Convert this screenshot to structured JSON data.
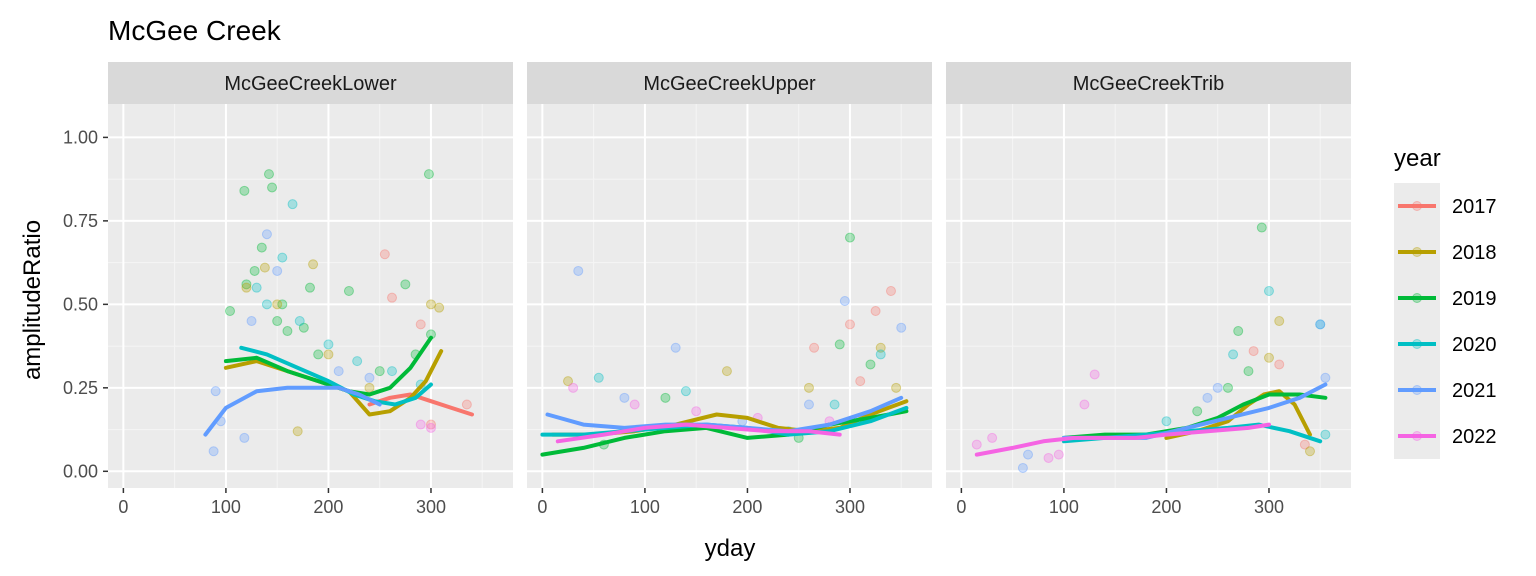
{
  "chart_data": {
    "type": "scatter",
    "title": "McGee Creek",
    "xlabel": "yday",
    "ylabel": "amplitudeRatio",
    "xlim": [
      -15,
      380
    ],
    "ylim": [
      -0.05,
      1.1
    ],
    "xticks": [
      0,
      100,
      200,
      300
    ],
    "xtick_labels": [
      "0",
      "100",
      "200",
      "300"
    ],
    "yticks": [
      0,
      0.25,
      0.5,
      0.75,
      1.0
    ],
    "ytick_labels": [
      "0.00",
      "0.25",
      "0.50",
      "0.75",
      "1.00"
    ],
    "grid": true,
    "legend": {
      "title": "year",
      "placement": "right",
      "entries": [
        "2017",
        "2018",
        "2019",
        "2020",
        "2021",
        "2022"
      ]
    },
    "colors": {
      "2017": "#F8766D",
      "2018": "#B79F00",
      "2019": "#00BA38",
      "2020": "#00BFC4",
      "2021": "#619CFF",
      "2022": "#F564E3"
    },
    "panels": [
      {
        "label": "McGeeCreekLower",
        "smooths": [
          {
            "name": "2017",
            "x": [
              240,
              260,
              280,
              300,
              320,
              340
            ],
            "y": [
              0.2,
              0.22,
              0.23,
              0.21,
              0.19,
              0.17
            ]
          },
          {
            "name": "2018",
            "x": [
              100,
              130,
              160,
              190,
              220,
              240,
              260,
              280,
              295,
              310
            ],
            "y": [
              0.31,
              0.33,
              0.3,
              0.27,
              0.24,
              0.17,
              0.18,
              0.22,
              0.27,
              0.36
            ]
          },
          {
            "name": "2019",
            "x": [
              100,
              130,
              160,
              190,
              220,
              240,
              260,
              280,
              300
            ],
            "y": [
              0.33,
              0.34,
              0.3,
              0.27,
              0.24,
              0.23,
              0.25,
              0.31,
              0.4
            ]
          },
          {
            "name": "2020",
            "x": [
              115,
              140,
              170,
              200,
              225,
              245,
              265,
              285,
              300
            ],
            "y": [
              0.37,
              0.35,
              0.31,
              0.27,
              0.23,
              0.21,
              0.2,
              0.22,
              0.26
            ]
          },
          {
            "name": "2021",
            "x": [
              80,
              100,
              130,
              160,
              190,
              210,
              230,
              250
            ],
            "y": [
              0.11,
              0.19,
              0.24,
              0.25,
              0.25,
              0.25,
              0.23,
              0.2
            ]
          }
        ],
        "points": [
          {
            "name": "2019",
            "x": [
              118,
              142,
              145,
              155,
              182,
              298,
              120,
              135,
              160,
              176,
              220,
              275,
              104,
              128,
              150,
              190,
              250,
              285,
              300
            ],
            "y": [
              0.84,
              0.89,
              0.85,
              0.5,
              0.55,
              0.89,
              0.56,
              0.67,
              0.42,
              0.43,
              0.54,
              0.56,
              0.48,
              0.6,
              0.45,
              0.35,
              0.3,
              0.35,
              0.41
            ]
          },
          {
            "name": "2020",
            "x": [
              165,
              155,
              130,
              140,
              172,
              200,
              228,
              262,
              290
            ],
            "y": [
              0.8,
              0.64,
              0.55,
              0.5,
              0.45,
              0.38,
              0.33,
              0.3,
              0.26
            ]
          },
          {
            "name": "2021",
            "x": [
              140,
              150,
              125,
              90,
              95,
              118,
              210,
              240,
              88
            ],
            "y": [
              0.71,
              0.6,
              0.45,
              0.24,
              0.15,
              0.1,
              0.3,
              0.28,
              0.06
            ]
          },
          {
            "name": "2018",
            "x": [
              138,
              185,
              120,
              150,
              200,
              240,
              300,
              308,
              170
            ],
            "y": [
              0.61,
              0.62,
              0.55,
              0.5,
              0.35,
              0.25,
              0.5,
              0.49,
              0.12
            ]
          },
          {
            "name": "2017",
            "x": [
              255,
              262,
              290,
              300,
              335
            ],
            "y": [
              0.65,
              0.52,
              0.44,
              0.14,
              0.2
            ]
          },
          {
            "name": "2022",
            "x": [
              290,
              300
            ],
            "y": [
              0.14,
              0.13
            ]
          }
        ]
      },
      {
        "label": "McGeeCreekUpper",
        "smooths": [
          {
            "name": "2018",
            "x": [
              10,
              50,
              90,
              130,
              170,
              200,
              230,
              260,
              290,
              320,
              355
            ],
            "y": [
              0.11,
              0.11,
              0.12,
              0.14,
              0.17,
              0.16,
              0.13,
              0.12,
              0.13,
              0.17,
              0.21
            ]
          },
          {
            "name": "2019",
            "x": [
              0,
              40,
              80,
              120,
              160,
              200,
              240,
              280,
              320,
              355
            ],
            "y": [
              0.05,
              0.07,
              0.1,
              0.12,
              0.13,
              0.1,
              0.11,
              0.14,
              0.16,
              0.18
            ]
          },
          {
            "name": "2020",
            "x": [
              0,
              40,
              80,
              120,
              160,
              200,
              240,
              280,
              320,
              355
            ],
            "y": [
              0.11,
              0.11,
              0.12,
              0.13,
              0.14,
              0.13,
              0.11,
              0.12,
              0.15,
              0.19
            ]
          },
          {
            "name": "2021",
            "x": [
              5,
              40,
              80,
              120,
              160,
              200,
              240,
              280,
              320,
              350
            ],
            "y": [
              0.17,
              0.14,
              0.13,
              0.14,
              0.14,
              0.13,
              0.12,
              0.14,
              0.18,
              0.22
            ]
          },
          {
            "name": "2022",
            "x": [
              15,
              60,
              100,
              140,
              180,
              220,
              260,
              290
            ],
            "y": [
              0.09,
              0.11,
              0.13,
              0.14,
              0.13,
              0.12,
              0.12,
              0.11
            ]
          }
        ],
        "points": [
          {
            "name": "2021",
            "x": [
              35,
              80,
              130,
              195,
              260,
              295,
              350
            ],
            "y": [
              0.6,
              0.22,
              0.37,
              0.15,
              0.2,
              0.51,
              0.43
            ]
          },
          {
            "name": "2019",
            "x": [
              300,
              290,
              320,
              60,
              120,
              250
            ],
            "y": [
              0.7,
              0.38,
              0.32,
              0.08,
              0.22,
              0.1
            ]
          },
          {
            "name": "2017",
            "x": [
              300,
              340,
              325,
              310,
              265
            ],
            "y": [
              0.44,
              0.54,
              0.48,
              0.27,
              0.37
            ]
          },
          {
            "name": "2018",
            "x": [
              25,
              180,
              260,
              330,
              345
            ],
            "y": [
              0.27,
              0.3,
              0.25,
              0.37,
              0.25
            ]
          },
          {
            "name": "2020",
            "x": [
              55,
              140,
              240,
              285,
              330
            ],
            "y": [
              0.28,
              0.24,
              0.12,
              0.2,
              0.35
            ]
          },
          {
            "name": "2022",
            "x": [
              30,
              90,
              150,
              210,
              280
            ],
            "y": [
              0.25,
              0.2,
              0.18,
              0.16,
              0.15
            ]
          }
        ]
      },
      {
        "label": "McGeeCreekTrib",
        "smooths": [
          {
            "name": "2018",
            "x": [
              200,
              230,
              260,
              280,
              295,
              310,
              325,
              340
            ],
            "y": [
              0.1,
              0.12,
              0.15,
              0.2,
              0.23,
              0.24,
              0.2,
              0.11
            ]
          },
          {
            "name": "2019",
            "x": [
              100,
              140,
              180,
              220,
              250,
              275,
              300,
              330,
              355
            ],
            "y": [
              0.1,
              0.11,
              0.11,
              0.13,
              0.16,
              0.2,
              0.23,
              0.23,
              0.22
            ]
          },
          {
            "name": "2020",
            "x": [
              100,
              140,
              180,
              220,
              260,
              290,
              320,
              350
            ],
            "y": [
              0.09,
              0.1,
              0.11,
              0.12,
              0.13,
              0.14,
              0.12,
              0.09
            ]
          },
          {
            "name": "2021",
            "x": [
              100,
              140,
              180,
              220,
              260,
              300,
              330,
              355
            ],
            "y": [
              0.1,
              0.1,
              0.1,
              0.13,
              0.16,
              0.19,
              0.22,
              0.26
            ]
          },
          {
            "name": "2022",
            "x": [
              15,
              50,
              80,
              110,
              140,
              170,
              200,
              240,
              280,
              300
            ],
            "y": [
              0.05,
              0.07,
              0.09,
              0.1,
              0.1,
              0.1,
              0.11,
              0.12,
              0.13,
              0.14
            ]
          }
        ],
        "points": [
          {
            "name": "2019",
            "x": [
              293,
              270,
              280,
              260,
              230
            ],
            "y": [
              0.73,
              0.42,
              0.3,
              0.25,
              0.18
            ]
          },
          {
            "name": "2020",
            "x": [
              300,
              350,
              355,
              265,
              200
            ],
            "y": [
              0.54,
              0.44,
              0.11,
              0.35,
              0.15
            ]
          },
          {
            "name": "2017",
            "x": [
              285,
              310,
              335
            ],
            "y": [
              0.36,
              0.32,
              0.08
            ]
          },
          {
            "name": "2018",
            "x": [
              310,
              300,
              340
            ],
            "y": [
              0.45,
              0.34,
              0.06
            ]
          },
          {
            "name": "2021",
            "x": [
              350,
              355,
              240,
              250,
              60,
              65
            ],
            "y": [
              0.44,
              0.28,
              0.22,
              0.25,
              0.01,
              0.05
            ]
          },
          {
            "name": "2022",
            "x": [
              15,
              30,
              130,
              120,
              85,
              95
            ],
            "y": [
              0.08,
              0.1,
              0.29,
              0.2,
              0.04,
              0.05
            ]
          }
        ]
      }
    ]
  }
}
